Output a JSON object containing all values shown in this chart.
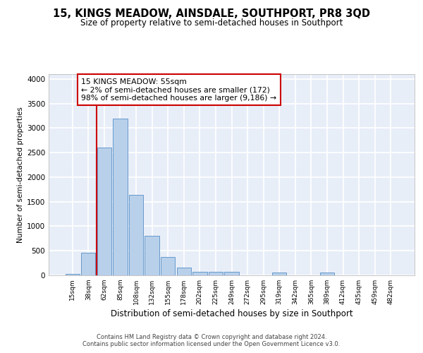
{
  "title": "15, KINGS MEADOW, AINSDALE, SOUTHPORT, PR8 3QD",
  "subtitle": "Size of property relative to semi-detached houses in Southport",
  "xlabel": "Distribution of semi-detached houses by size in Southport",
  "ylabel": "Number of semi-detached properties",
  "categories": [
    "15sqm",
    "38sqm",
    "62sqm",
    "85sqm",
    "108sqm",
    "132sqm",
    "155sqm",
    "178sqm",
    "202sqm",
    "225sqm",
    "249sqm",
    "272sqm",
    "295sqm",
    "319sqm",
    "342sqm",
    "365sqm",
    "389sqm",
    "412sqm",
    "435sqm",
    "459sqm",
    "482sqm"
  ],
  "bar_heights": [
    30,
    460,
    2600,
    3190,
    1640,
    800,
    380,
    155,
    75,
    70,
    65,
    0,
    0,
    55,
    0,
    0,
    55,
    0,
    0,
    0,
    0
  ],
  "bar_color": "#b8d0ea",
  "bar_edge_color": "#6699cc",
  "background_color": "#e8eef8",
  "grid_color": "#ffffff",
  "annotation_text": "15 KINGS MEADOW: 55sqm\n← 2% of semi-detached houses are smaller (172)\n98% of semi-detached houses are larger (9,186) →",
  "annotation_box_color": "#ffffff",
  "annotation_box_edge_color": "#cc0000",
  "vline_x": 2,
  "vline_color": "#cc0000",
  "ylim": [
    0,
    4100
  ],
  "yticks": [
    0,
    500,
    1000,
    1500,
    2000,
    2500,
    3000,
    3500,
    4000
  ],
  "footer_line1": "Contains HM Land Registry data © Crown copyright and database right 2024.",
  "footer_line2": "Contains public sector information licensed under the Open Government Licence v3.0."
}
